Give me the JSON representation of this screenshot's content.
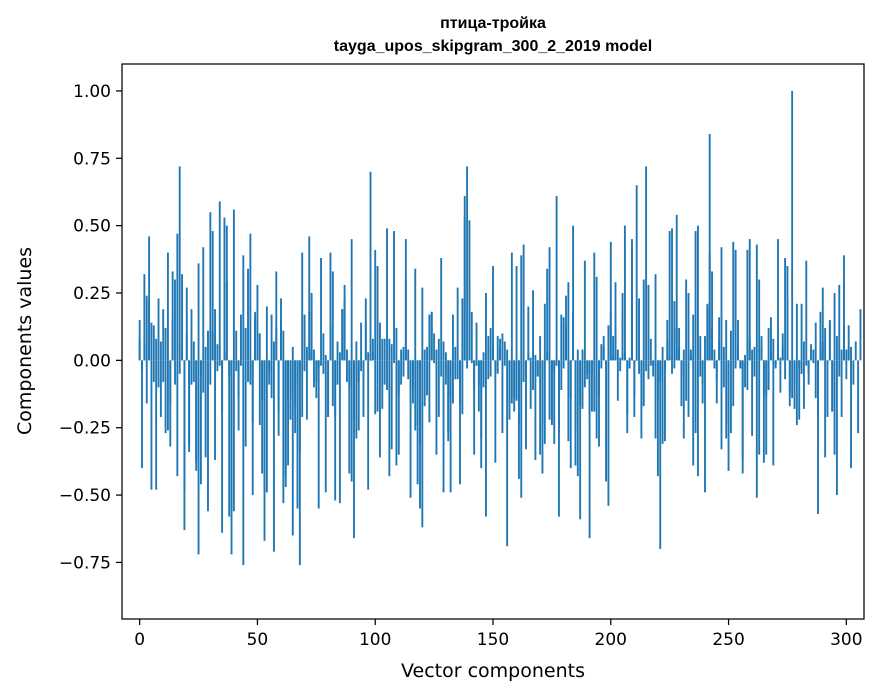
{
  "chart_data": {
    "type": "bar",
    "title": "птица-тройка",
    "subtitle": "tayga_upos_skipgram_300_2_2019 model",
    "xlabel": "Vector components",
    "ylabel": "Components values",
    "xlim": [
      -7.5,
      307.5
    ],
    "ylim": [
      -0.96,
      1.1
    ],
    "xticks": [
      0,
      50,
      100,
      150,
      200,
      250,
      300
    ],
    "yticks": [
      -0.75,
      -0.5,
      -0.25,
      0.0,
      0.25,
      0.5,
      0.75,
      1.0
    ],
    "ytick_labels": [
      "−0.75",
      "−0.50",
      "−0.25",
      "0.00",
      "0.25",
      "0.50",
      "0.75",
      "1.00"
    ],
    "grid": false,
    "legend": "none",
    "bar_color": "#1f77b4",
    "values": [
      0.15,
      -0.4,
      0.32,
      0.24,
      0.46,
      0.14,
      0.13,
      -0.48,
      0.23,
      -0.21,
      -0.08,
      0.12,
      0.4,
      -0.16,
      0.33,
      -0.09,
      0.47,
      0.72,
      0.32,
      -0.63,
      0.1,
      -0.31,
      -0.09,
      -0.08,
      -0.41,
      0.36,
      -0.06,
      0.42,
      -0.36,
      -0.56,
      0.55,
      0.48,
      0.19,
      -0.04,
      0.59,
      -0.64,
      0.53,
      0.5,
      -0.06,
      -0.55,
      0.56,
      -0.04,
      -0.26,
      0.17,
      0.39,
      -0.32,
      0.34,
      0.47,
      -0.5,
      0.18,
      0.1,
      -0.24,
      -0.42,
      -0.67,
      0.2,
      -0.09,
      -0.14,
      -0.71,
      0.33,
      -0.28,
      0.15,
      0.11,
      -0.43,
      -0.39,
      -0.14,
      -0.65,
      -0.27,
      -0.55,
      -0.76,
      0.4,
      -0.04,
      -0.22,
      0.18,
      0.04,
      -0.1,
      -0.14,
      -0.55,
      -0.02,
      0.1,
      0.02,
      -0.21,
      0.13,
      0.33,
      -0.52,
      0.07,
      -0.53,
      0.19,
      0.28,
      0.04,
      -0.1,
      -0.45,
      -0.66,
      0.07,
      -0.26,
      0.14,
      -0.21,
      0.23,
      -0.48,
      0.7,
      0.08,
      -0.2,
      0.35,
      0.14,
      -0.18,
      -0.09,
      0.49,
      0.08,
      -0.33,
      -0.01,
      0.12,
      -0.13,
      0.04,
      -0.06,
      0.3,
      -0.07,
      -0.51,
      -0.16,
      -0.26,
      -0.46,
      -0.55,
      -0.62,
      0.04,
      -0.13,
      -0.23,
      0.18,
      -0.01,
      -0.35,
      0.08,
      -0.06,
      0.07,
      -0.09,
      -0.3,
      -0.49,
      -0.16,
      -0.07,
      0.27,
      -0.16,
      0.23,
      0.53,
      0.72,
      0.52,
      -0.01,
      -0.35,
      0.14,
      -0.19,
      -0.29,
      0.03,
      0.25,
      0.09,
      -0.06,
      0.35,
      -0.38,
      0.09,
      0.08,
      0.1,
      0.07,
      -0.69,
      -0.22,
      0.4,
      -0.19,
      -0.15,
      -0.24,
      0.39,
      -0.08,
      -0.33,
      0.03,
      0.01,
      0.26,
      0.02,
      -0.06,
      0.09,
      -0.42,
      -0.31,
      0.03,
      -0.22,
      -0.24,
      -0.04,
      0.61,
      -0.58,
      -0.11,
      -0.03,
      0.13,
      0.29,
      -0.14,
      0.5,
      -0.39,
      0.04,
      -0.17,
      -0.18,
      -0.1,
      -0.07,
      -0.21,
      -0.19,
      0.4,
      -0.29,
      -0.32,
      0.06,
      0.05,
      -0.04,
      -0.54,
      0.18,
      0.09,
      0.29,
      -0.15,
      0.01,
      0.25,
      0.5,
      -0.2,
      0.01,
      0.45,
      -0.13,
      0.65,
      0.23,
      -0.29,
      0.3,
      0.72,
      0.28,
      0.08,
      -0.06,
      0.32,
      -0.15,
      -0.7,
      0.05,
      -0.3,
      0.15,
      0.48,
      -0.05,
      0.22,
      0.54,
      0.05,
      -0.06,
      -0.29,
      0.3,
      0.25,
      0.04,
      -0.39,
      0.48,
      0.5,
      -0.06,
      -0.09,
      0.09,
      0.21,
      0.84,
      0.12,
      -0.03,
      -0.07,
      0.07,
      0.42,
      -0.1,
      -0.29,
      -0.24,
      0.11,
      0.44,
      0.41,
      0.05,
      -0.03,
      -0.37,
      0.02,
      0.41,
      0.45,
      -0.28,
      0.05,
      -0.51,
      0.3,
      0.09,
      -0.13,
      -0.35,
      -0.11,
      0.04,
      -0.39,
      -0.02,
      0.45,
      0.01,
      0.05,
      -0.07,
      0.22,
      -0.12,
      1.0,
      -0.08,
      -0.24,
      -0.03,
      0.21,
      -0.18,
      0.37,
      -0.05,
      0.06,
      0.04,
      0.14,
      -0.57,
      0.05,
      0.27,
      0.12,
      -0.21,
      0.14,
      -0.19,
      0.25,
      -0.5,
      0.28,
      0.04,
      0.39,
      0.04,
      0.13,
      0.05,
      -0.09,
      0.07,
      -0.27,
      0.19
    ],
    "overlay_values": [
      0.08,
      -0.04,
      0.06,
      -0.16,
      0.22,
      -0.48,
      -0.08,
      0.08,
      -0.1,
      0.07,
      0.19,
      -0.27,
      -0.26,
      -0.32,
      0.15,
      0.3,
      -0.43,
      -0.05,
      0.04,
      -0.49,
      0.27,
      -0.34,
      0.19,
      0.07,
      -0.38,
      -0.72,
      -0.46,
      -0.12,
      0.05,
      0.11,
      -0.09,
      0.11,
      -0.37,
      0.06,
      -0.02,
      -0.19,
      0.03,
      0.29,
      -0.58,
      -0.72,
      -0.56,
      0.11,
      -0.14,
      -0.02,
      -0.76,
      0.12,
      -0.08,
      -0.09,
      -0.23,
      0.16,
      0.28,
      0.1,
      -0.15,
      -0.49,
      -0.49,
      -0.04,
      0.17,
      0.07,
      0.12,
      -0.19,
      0.23,
      -0.53,
      -0.47,
      -0.15,
      -0.22,
      0.05,
      -0.17,
      -0.08,
      -0.34,
      -0.21,
      0.17,
      0.05,
      0.46,
      0.25,
      0.04,
      -0.08,
      -0.03,
      0.38,
      -0.05,
      -0.49,
      -0.21,
      0.4,
      -0.17,
      -0.21,
      -0.09,
      0.03,
      0.19,
      0.23,
      -0.08,
      -0.42,
      0.45,
      -0.22,
      -0.29,
      -0.08,
      -0.04,
      -0.18,
      0.14,
      0.03,
      0.0,
      0.03,
      0.41,
      -0.19,
      -0.36,
      0.08,
      0.08,
      -0.11,
      -0.43,
      0.06,
      0.48,
      -0.39,
      -0.35,
      -0.09,
      0.05,
      0.45,
      0.04,
      -0.12,
      -0.1,
      0.34,
      -0.24,
      -0.31,
      0.27,
      -0.17,
      0.05,
      0.17,
      0.18,
      0.1,
      0.04,
      -0.21,
      0.38,
      -0.49,
      0.03,
      -0.27,
      -0.14,
      0.17,
      0.05,
      -0.07,
      -0.46,
      -0.2,
      0.61,
      -0.03,
      0.29,
      0.18,
      -0.11,
      -0.02,
      -0.09,
      -0.4,
      -0.1,
      -0.58,
      -0.07,
      0.12,
      0.05,
      -0.04,
      -0.05,
      0.05,
      -0.27,
      -0.02,
      0.04,
      -0.16,
      -0.16,
      -0.14,
      0.35,
      -0.44,
      -0.51,
      0.43,
      -0.06,
      0.2,
      -0.18,
      -0.11,
      -0.37,
      -0.06,
      -0.35,
      -0.24,
      0.21,
      0.34,
      0.42,
      -0.23,
      -0.31,
      -0.02,
      -0.27,
      0.17,
      0.16,
      0.24,
      -0.3,
      -0.4,
      0.18,
      -0.26,
      -0.43,
      -0.59,
      0.04,
      0.37,
      -0.05,
      -0.66,
      -0.05,
      -0.19,
      0.31,
      -0.13,
      -0.03,
      0.09,
      -0.45,
      0.13,
      0.44,
      0.02,
      0.11,
      0.04,
      -0.04,
      0.17,
      0.03,
      -0.27,
      -0.03,
      0.42,
      -0.21,
      0.0,
      -0.05,
      -0.18,
      -0.17,
      -0.04,
      -0.07,
      -0.02,
      -0.02,
      -0.29,
      -0.43,
      -0.08,
      -0.31,
      -0.03,
      0.07,
      0.01,
      0.49,
      -0.03,
      0.12,
      0.12,
      -0.17,
      0.04,
      -0.15,
      -0.21,
      0.02,
      0.17,
      -0.27,
      -0.43,
      0.09,
      -0.16,
      -0.49,
      0.19,
      0.4,
      0.33,
      0.04,
      -0.16,
      0.16,
      -0.33,
      0.05,
      0.15,
      -0.41,
      -0.27,
      -0.17,
      -0.03,
      0.15,
      -0.03,
      -0.42,
      -0.1,
      -0.11,
      0.08,
      0.04,
      -0.06,
      0.43,
      -0.35,
      0.05,
      -0.38,
      -0.13,
      0.12,
      0.16,
      0.08,
      -0.03,
      0.06,
      -0.12,
      0.1,
      0.38,
      0.35,
      -0.17,
      -0.14,
      -0.18,
      0.21,
      -0.22,
      -0.05,
      0.07,
      -0.02,
      -0.09,
      0.01,
      -0.01,
      -0.14,
      -0.21,
      0.18,
      0.07,
      -0.36,
      -0.01,
      0.15,
      -0.19,
      -0.35,
      0.09,
      -0.06,
      -0.21,
      0.13,
      -0.07,
      0.05,
      -0.4
    ]
  }
}
